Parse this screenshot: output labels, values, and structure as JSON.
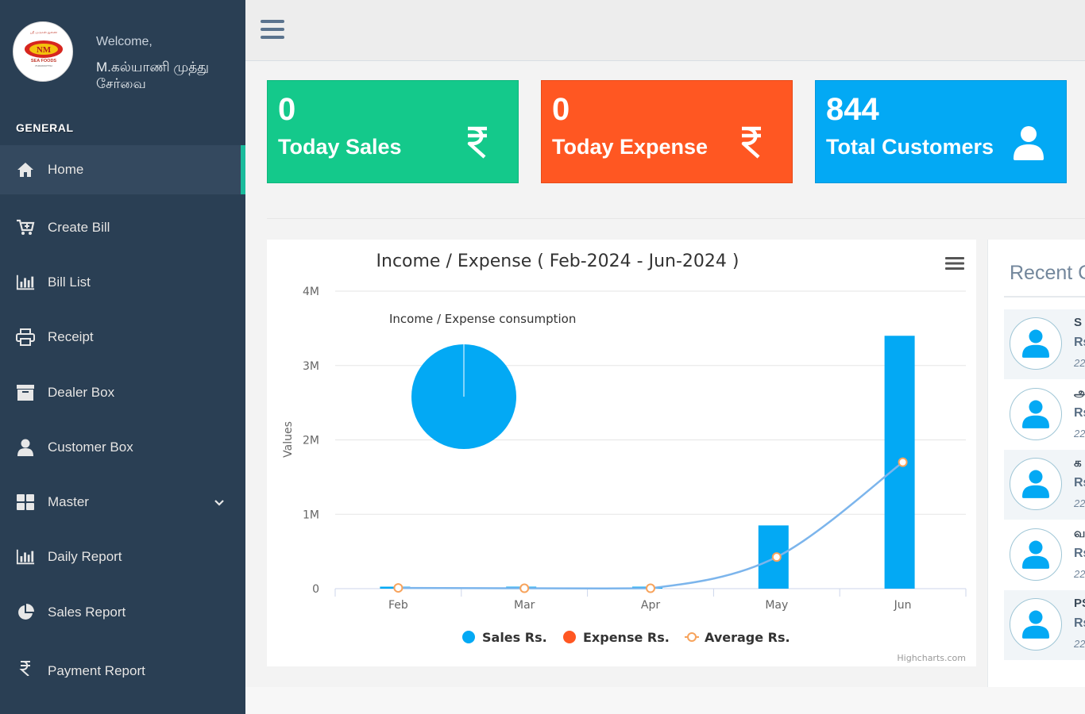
{
  "sidebar": {
    "welcome": "Welcome,",
    "username": "M.கல்யாணி முத்து சேர்வை",
    "logo_text": "NM",
    "logo_caption": "SEA FOODS",
    "section_title": "GENERAL",
    "items": [
      {
        "label": "Home",
        "icon": "home-icon"
      },
      {
        "label": "Create Bill",
        "icon": "cart-plus-icon"
      },
      {
        "label": "Bill List",
        "icon": "bar-chart-icon"
      },
      {
        "label": "Receipt",
        "icon": "printer-icon"
      },
      {
        "label": "Dealer Box",
        "icon": "archive-icon"
      },
      {
        "label": "Customer Box",
        "icon": "user-icon"
      },
      {
        "label": "Master",
        "icon": "grid-icon"
      },
      {
        "label": "Daily Report",
        "icon": "bar-chart-icon"
      },
      {
        "label": "Sales Report",
        "icon": "pie-chart-icon"
      },
      {
        "label": "Payment Report",
        "icon": "rupee-icon"
      }
    ]
  },
  "tiles": {
    "sales": {
      "count": "0",
      "label": "Today Sales",
      "icon": "rupee-icon",
      "color": "#14c98b"
    },
    "expense": {
      "count": "0",
      "label": "Today Expense",
      "icon": "rupee-icon",
      "color": "#ff5722"
    },
    "customers": {
      "count": "844",
      "label": "Total Customers",
      "icon": "user-icon",
      "color": "#03a9f4"
    }
  },
  "recent": {
    "title": "Recent C",
    "items": [
      {
        "name": "S",
        "amount": "Rs",
        "date": "22"
      },
      {
        "name": "அ",
        "amount": "Rs",
        "date": "22"
      },
      {
        "name": "க",
        "amount": "Rs",
        "date": "22"
      },
      {
        "name": "வ",
        "amount": "Rs",
        "date": "22"
      },
      {
        "name": "PS",
        "amount": "Rs",
        "date": "22"
      }
    ]
  },
  "chart_data": {
    "type": "bar",
    "title": "Income / Expense ( Feb-2024 - Jun-2024 )",
    "ylabel": "Values",
    "ylim": [
      0,
      4000000
    ],
    "yticks": [
      "0",
      "1M",
      "2M",
      "3M",
      "4M"
    ],
    "categories": [
      "Feb",
      "Mar",
      "Apr",
      "May",
      "Jun"
    ],
    "series": [
      {
        "name": "Sales Rs.",
        "type": "column",
        "color": "#03a9f4",
        "values": [
          20000,
          5000,
          5000,
          850000,
          3400000
        ]
      },
      {
        "name": "Expense Rs.",
        "type": "column",
        "color": "#ff5722",
        "values": [
          0,
          0,
          0,
          0,
          0
        ]
      },
      {
        "name": "Average Rs.",
        "type": "spline",
        "color": "#f7a35c",
        "values": [
          10000,
          5000,
          5000,
          425000,
          1700000
        ]
      }
    ],
    "pie": {
      "title": "Income / Expense consumption",
      "slices": [
        {
          "name": "Sales Rs.",
          "value": 4280000,
          "color": "#03a9f4"
        },
        {
          "name": "Expense Rs.",
          "value": 0,
          "color": "#ff5722"
        }
      ]
    },
    "legend_position": "bottom-center",
    "credits": "Highcharts.com"
  }
}
